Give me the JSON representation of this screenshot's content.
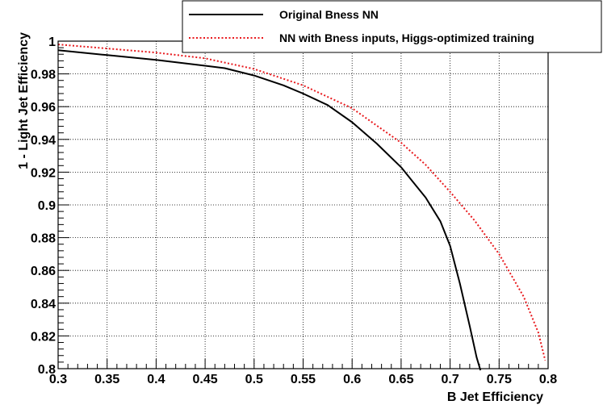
{
  "chart_data": {
    "type": "line",
    "title": "",
    "xlabel": "B Jet Efficiency",
    "ylabel": "1 - Light Jet Efficiency",
    "xlim": [
      0.3,
      0.8
    ],
    "ylim": [
      0.8,
      1.0
    ],
    "x_ticks": [
      "0.3",
      "0.35",
      "0.4",
      "0.45",
      "0.5",
      "0.55",
      "0.6",
      "0.65",
      "0.7",
      "0.75",
      "0.8"
    ],
    "y_ticks": [
      "0.8",
      "0.82",
      "0.84",
      "0.86",
      "0.88",
      "0.9",
      "0.92",
      "0.94",
      "0.96",
      "0.98",
      "1"
    ],
    "grid": true,
    "legend_position": "top-right",
    "series": [
      {
        "name": "Original Bness NN",
        "color": "#000000",
        "style": "solid",
        "points": [
          [
            0.3,
            0.9945
          ],
          [
            0.35,
            0.9915
          ],
          [
            0.4,
            0.9885
          ],
          [
            0.45,
            0.985
          ],
          [
            0.47,
            0.9835
          ],
          [
            0.5,
            0.979
          ],
          [
            0.53,
            0.973
          ],
          [
            0.55,
            0.968
          ],
          [
            0.575,
            0.961
          ],
          [
            0.6,
            0.9505
          ],
          [
            0.625,
            0.9375
          ],
          [
            0.65,
            0.923
          ],
          [
            0.675,
            0.9045
          ],
          [
            0.69,
            0.89
          ],
          [
            0.7,
            0.875
          ],
          [
            0.71,
            0.852
          ],
          [
            0.72,
            0.826
          ],
          [
            0.727,
            0.807
          ],
          [
            0.731,
            0.799
          ]
        ]
      },
      {
        "name": "NN with Bness inputs, Higgs-optimized training",
        "color": "#e8191d",
        "style": "dotted",
        "points": [
          [
            0.3,
            0.998
          ],
          [
            0.35,
            0.9955
          ],
          [
            0.4,
            0.993
          ],
          [
            0.45,
            0.9895
          ],
          [
            0.5,
            0.983
          ],
          [
            0.55,
            0.973
          ],
          [
            0.6,
            0.959
          ],
          [
            0.65,
            0.938
          ],
          [
            0.675,
            0.9245
          ],
          [
            0.7,
            0.908
          ],
          [
            0.725,
            0.8905
          ],
          [
            0.75,
            0.87
          ],
          [
            0.775,
            0.844
          ],
          [
            0.79,
            0.822
          ],
          [
            0.797,
            0.805
          ]
        ]
      }
    ]
  }
}
